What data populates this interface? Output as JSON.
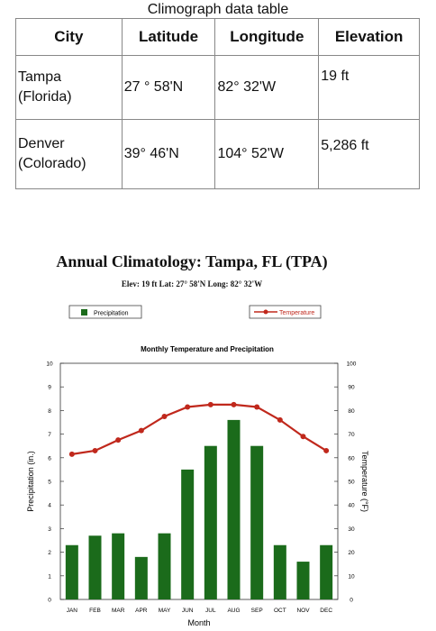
{
  "table": {
    "caption": "Climograph data table",
    "headers": [
      "City",
      "Latitude",
      "Longitude",
      "Elevation"
    ],
    "rows": [
      {
        "city_line1": "Tampa",
        "city_line2": "(Florida)",
        "latitude": "27 ° 58'N",
        "longitude": "82° 32'W",
        "elevation": "19 ft"
      },
      {
        "city_line1": "Denver",
        "city_line2": "(Colorado)",
        "latitude": "39° 46'N",
        "longitude": "104° 52'W",
        "elevation": "5,286 ft"
      }
    ]
  },
  "chart_data": {
    "type": "bar",
    "title": "Annual Climatology: Tampa, FL (TPA)",
    "subtitle": "Elev: 19 ft   Lat: 27° 58'N   Long: 82° 32'W",
    "plot_title": "Monthly Temperature and Precipitation",
    "xlabel": "Month",
    "ylabel": "Precipitation (in.)",
    "y2label": "Temperature (°F)",
    "categories": [
      "JAN",
      "FEB",
      "MAR",
      "APR",
      "MAY",
      "JUN",
      "JUL",
      "AUG",
      "SEP",
      "OCT",
      "NOV",
      "DEC"
    ],
    "ylim": [
      0,
      10
    ],
    "y2lim": [
      0,
      100
    ],
    "yticks": [
      0,
      1,
      2,
      3,
      4,
      5,
      6,
      7,
      8,
      9,
      10
    ],
    "y2ticks": [
      0,
      10,
      20,
      30,
      40,
      50,
      60,
      70,
      80,
      90,
      100
    ],
    "series": [
      {
        "name": "Precipitation",
        "type": "bar",
        "axis": "left",
        "color": "#1b6b1b",
        "values": [
          2.3,
          2.7,
          2.8,
          1.8,
          2.8,
          5.5,
          6.5,
          7.6,
          6.5,
          2.3,
          1.6,
          2.3
        ]
      },
      {
        "name": "Temperature",
        "type": "line",
        "axis": "right",
        "color": "#c0281c",
        "values": [
          61.5,
          63,
          67.5,
          71.5,
          77.5,
          81.5,
          82.5,
          82.5,
          81.5,
          76,
          69,
          63
        ]
      }
    ],
    "legend_placement": "top"
  }
}
